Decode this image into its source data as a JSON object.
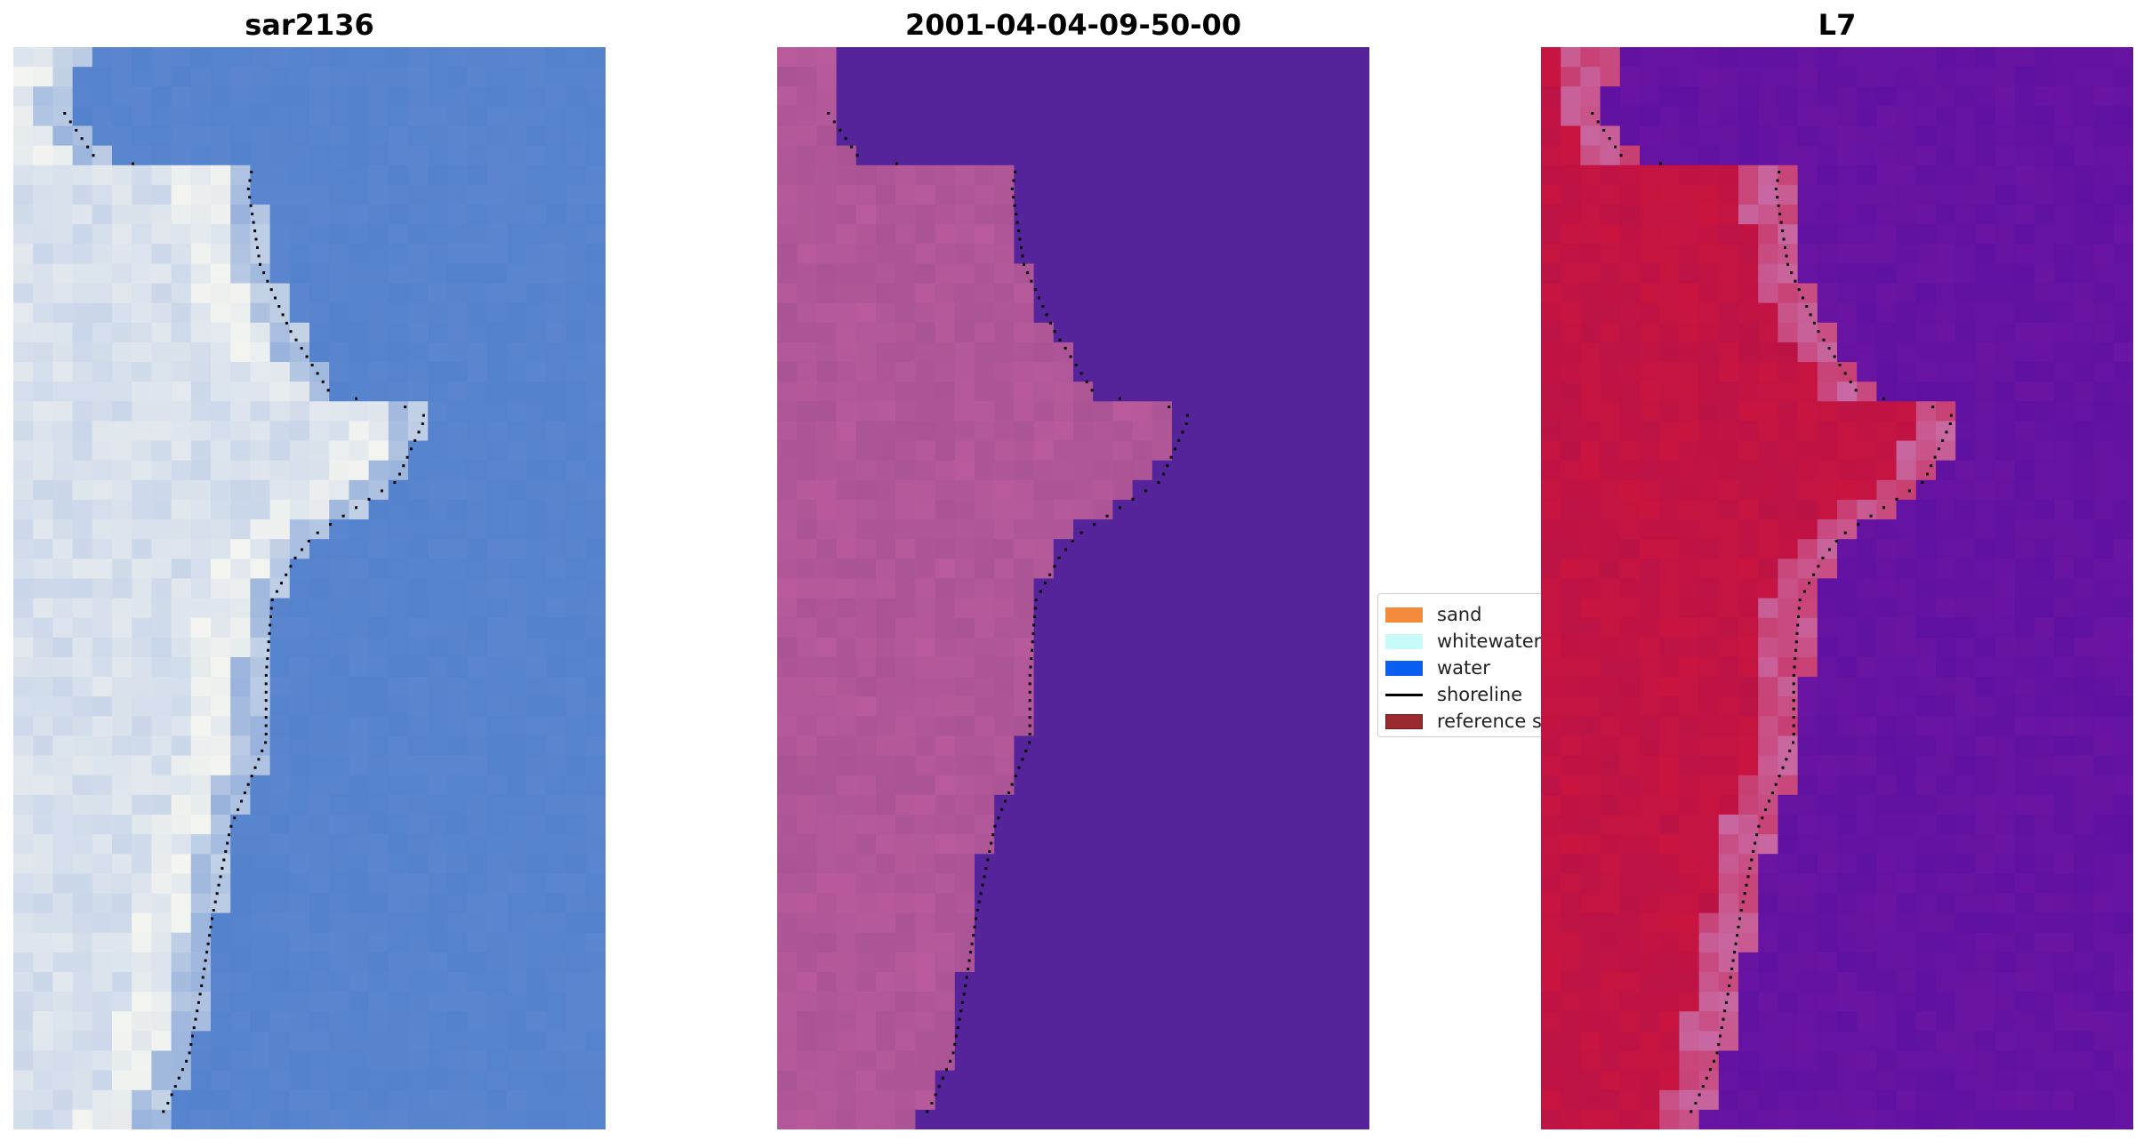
{
  "panels": [
    {
      "title": "sar2136",
      "style": "rgb"
    },
    {
      "title": "2001-04-04-09-50-00",
      "style": "classified"
    },
    {
      "title": "L7",
      "style": "index"
    }
  ],
  "legend": {
    "items": [
      {
        "label": "sand",
        "color": "#f68a3c",
        "kind": "patch"
      },
      {
        "label": "whitewater",
        "color": "#c6fbf9",
        "kind": "patch"
      },
      {
        "label": "water",
        "color": "#0b5ff0",
        "kind": "patch"
      },
      {
        "label": "shoreline",
        "color": "#000000",
        "kind": "line"
      },
      {
        "label": "reference shoreline",
        "color": "#9b2a2e",
        "kind": "patch"
      }
    ]
  },
  "colors": {
    "rgb_water": "#5b86cf",
    "rgb_land": "#c9d6ea",
    "rgb_sand_white": "#f4f5f0",
    "class_water": "#55239a",
    "class_land": "#b85a9c",
    "index_water": "#6a14a3",
    "index_land": "#c8143f",
    "index_edge": "#c86aa4"
  }
}
